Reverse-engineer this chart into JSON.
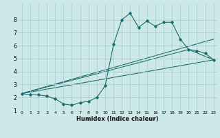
{
  "xlabel": "Humidex (Indice chaleur)",
  "bg_color": "#cce8e8",
  "grid_color": "#aacece",
  "line_color": "#1a6b6b",
  "xlim": [
    -0.5,
    23.5
  ],
  "ylim": [
    1.0,
    9.2
  ],
  "xticks": [
    0,
    1,
    2,
    3,
    4,
    5,
    6,
    7,
    8,
    9,
    10,
    11,
    12,
    13,
    14,
    15,
    16,
    17,
    18,
    19,
    20,
    21,
    22,
    23
  ],
  "yticks": [
    1,
    2,
    3,
    4,
    5,
    6,
    7,
    8
  ],
  "line1_x": [
    0,
    1,
    2,
    3,
    4,
    5,
    6,
    7,
    8,
    9,
    10,
    11,
    12,
    13,
    14,
    15,
    16,
    17,
    18,
    19,
    20,
    21,
    22,
    23
  ],
  "line1_y": [
    2.3,
    2.2,
    2.2,
    2.1,
    1.9,
    1.5,
    1.4,
    1.6,
    1.7,
    2.0,
    2.9,
    6.1,
    8.0,
    8.5,
    7.4,
    7.9,
    7.5,
    7.8,
    7.8,
    6.5,
    5.7,
    5.6,
    5.4,
    4.9
  ],
  "line2_x": [
    0,
    23
  ],
  "line2_y": [
    2.3,
    6.5
  ],
  "line3_x": [
    0,
    20,
    23
  ],
  "line3_y": [
    2.3,
    5.7,
    4.9
  ],
  "line4_x": [
    0,
    23
  ],
  "line4_y": [
    2.3,
    4.9
  ]
}
